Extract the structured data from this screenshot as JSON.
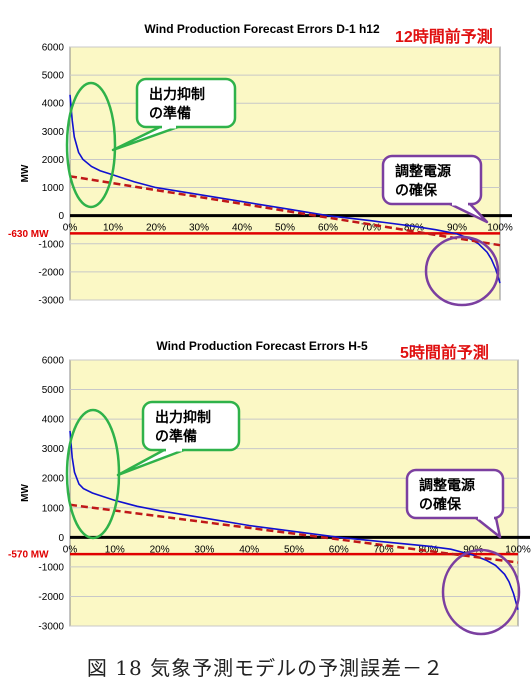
{
  "caption": "図 18 気象予測モデルの予測誤差－２",
  "colors": {
    "plot_bg": "#fbf8c5",
    "grid": "#c8c8c8",
    "curve": "#1010d0",
    "trend": "#c01818",
    "threshold": "#e00000",
    "zero_line": "#000000",
    "green_callout": "#2fb24a",
    "purple_callout": "#7b3fa0"
  },
  "chart_data": [
    {
      "type": "line",
      "title": "Wind Production Forecast Errors D-1 h12",
      "subtitle": "12時間前予測",
      "ylabel": "MW",
      "xlabel": "",
      "ylim": [
        -3000,
        6000
      ],
      "yticks": [
        6000,
        5000,
        4000,
        3000,
        2000,
        1000,
        0,
        -1000,
        -2000,
        -3000
      ],
      "xticks": [
        "0%",
        "10%",
        "20%",
        "30%",
        "40%",
        "50%",
        "60%",
        "70%",
        "80%",
        "90%",
        "100%"
      ],
      "series": [
        {
          "x": [
            0,
            0.5,
            1,
            2,
            3,
            5,
            7,
            10,
            15,
            20,
            30,
            40,
            50,
            60,
            70,
            80,
            85,
            90,
            93,
            95,
            97,
            98,
            99,
            100
          ],
          "y": [
            4300,
            3400,
            2800,
            2250,
            2000,
            1750,
            1600,
            1450,
            1200,
            1000,
            750,
            500,
            250,
            0,
            -180,
            -380,
            -500,
            -650,
            -820,
            -1000,
            -1300,
            -1550,
            -1900,
            -2400
          ]
        },
        {
          "x": [
            0,
            100
          ],
          "y": [
            1400,
            -1050
          ]
        }
      ],
      "threshold": {
        "label": "-630 MW",
        "value": -630
      },
      "callouts": [
        {
          "line1": "出力抑制",
          "line2": "の準備"
        },
        {
          "line1": "調整電源",
          "line2": "の確保"
        }
      ]
    },
    {
      "type": "line",
      "title": "Wind Production Forecast Errors H-5",
      "subtitle": "5時間前予測",
      "ylabel": "MW",
      "xlabel": "",
      "ylim": [
        -3000,
        6000
      ],
      "yticks": [
        6000,
        5000,
        4000,
        3000,
        2000,
        1000,
        0,
        -1000,
        -2000,
        -3000
      ],
      "xticks": [
        "0%",
        "10%",
        "20%",
        "30%",
        "40%",
        "50%",
        "60%",
        "70%",
        "80%",
        "90%",
        "100%"
      ],
      "series": [
        {
          "x": [
            0,
            0.5,
            1,
            2,
            3,
            5,
            7,
            10,
            15,
            20,
            30,
            40,
            50,
            60,
            70,
            80,
            85,
            90,
            93,
            95,
            97,
            98,
            99,
            100
          ],
          "y": [
            3600,
            2700,
            2200,
            1800,
            1650,
            1500,
            1400,
            1250,
            1050,
            900,
            650,
            400,
            200,
            0,
            -150,
            -300,
            -400,
            -600,
            -780,
            -950,
            -1250,
            -1500,
            -1900,
            -2450
          ]
        },
        {
          "x": [
            0,
            100
          ],
          "y": [
            1100,
            -850
          ]
        }
      ],
      "threshold": {
        "label": "-570 MW",
        "value": -570
      },
      "callouts": [
        {
          "line1": "出力抑制",
          "line2": "の準備"
        },
        {
          "line1": "調整電源",
          "line2": "の確保"
        }
      ]
    }
  ]
}
